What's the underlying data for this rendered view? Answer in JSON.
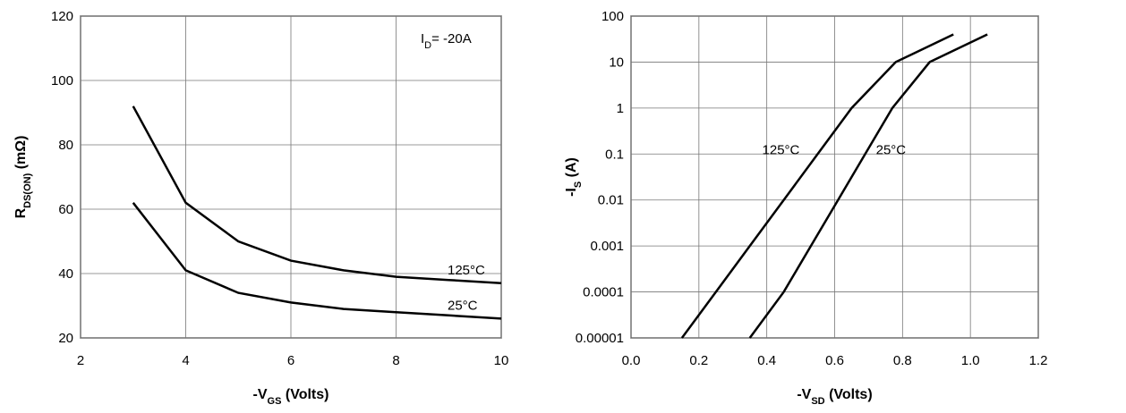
{
  "chart_data": [
    {
      "type": "line",
      "ylabel": [
        "R",
        "DS(ON)",
        " (mΩ)"
      ],
      "xlabel": [
        "-V",
        "GS",
        " (Volts)"
      ],
      "annotation": [
        "I",
        "D",
        "= -20A"
      ],
      "xlim": [
        2,
        10
      ],
      "xticks": [
        2,
        4,
        6,
        8,
        10
      ],
      "ylim": [
        20,
        120
      ],
      "yticks": [
        20,
        40,
        60,
        80,
        100,
        120
      ],
      "grid": true,
      "series": [
        {
          "name": "125°C",
          "color": "#000000",
          "x": [
            3,
            4,
            5,
            6,
            7,
            8,
            9,
            10
          ],
          "values": [
            92,
            62,
            50,
            44,
            41,
            39,
            38,
            37
          ]
        },
        {
          "name": "25°C",
          "color": "#000000",
          "x": [
            3,
            4,
            5,
            6,
            7,
            8,
            9,
            10
          ],
          "values": [
            62,
            41,
            34,
            31,
            29,
            28,
            27,
            26
          ]
        }
      ]
    },
    {
      "type": "line",
      "ylabel": [
        "-I",
        "S",
        " (A)"
      ],
      "xlabel": [
        "-V",
        "SD",
        " (Volts)"
      ],
      "xlim": [
        0,
        1.2
      ],
      "xticks": [
        {
          "value": 0,
          "label": "0.0"
        },
        0.2,
        0.4,
        0.6,
        0.8,
        {
          "value": 1,
          "label": "1.0"
        },
        1.2
      ],
      "ylim": [
        1e-05,
        100
      ],
      "log_y": true,
      "yticks": [
        {
          "value": 1e-05,
          "label": "0.00001"
        },
        {
          "value": 0.0001,
          "label": "0.0001"
        },
        0.001,
        0.01,
        0.1,
        1,
        10,
        100
      ],
      "grid": true,
      "series": [
        {
          "name": "125°C",
          "color": "#000000",
          "x": [
            0.15,
            0.25,
            0.35,
            0.45,
            0.55,
            0.65,
            0.78,
            0.95
          ],
          "values": [
            1e-05,
            0.0001,
            0.001,
            0.01,
            0.1,
            1,
            10,
            40
          ]
        },
        {
          "name": "25°C",
          "color": "#000000",
          "x": [
            0.35,
            0.45,
            0.53,
            0.61,
            0.69,
            0.77,
            0.88,
            1.05
          ],
          "values": [
            1e-05,
            0.0001,
            0.001,
            0.01,
            0.1,
            1,
            10,
            40
          ]
        }
      ]
    }
  ]
}
